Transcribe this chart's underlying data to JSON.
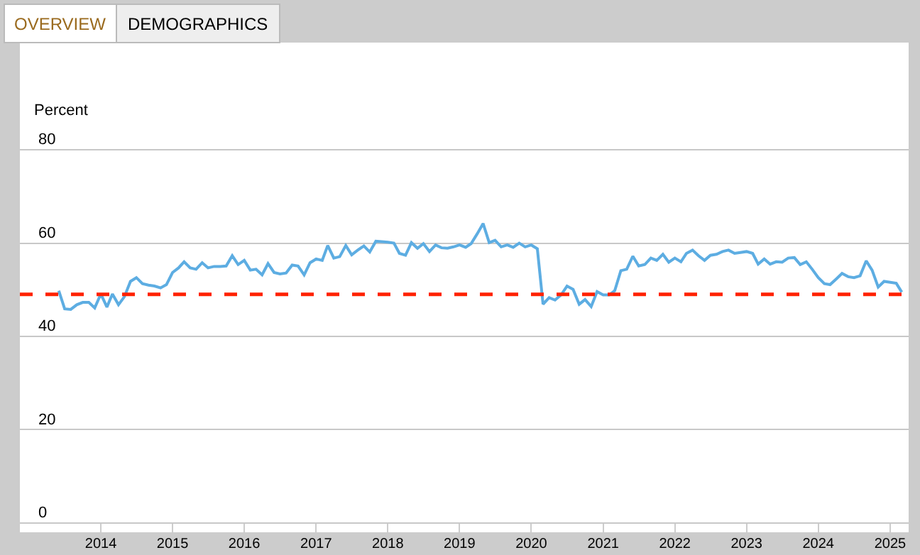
{
  "chart_data": {
    "type": "line",
    "ylabel": "Percent",
    "annotations": [
      "OVERVIEW",
      "DEMOGRAPHICS"
    ],
    "x": [
      "2013-06",
      "2013-07",
      "2013-08",
      "2013-09",
      "2013-10",
      "2013-11",
      "2013-12",
      "2014-01",
      "2014-02",
      "2014-03",
      "2014-04",
      "2014-05",
      "2014-06",
      "2014-07",
      "2014-08",
      "2014-09",
      "2014-10",
      "2014-11",
      "2014-12",
      "2015-01",
      "2015-02",
      "2015-03",
      "2015-04",
      "2015-05",
      "2015-06",
      "2015-07",
      "2015-08",
      "2015-09",
      "2015-10",
      "2015-11",
      "2015-12",
      "2016-01",
      "2016-02",
      "2016-03",
      "2016-04",
      "2016-05",
      "2016-06",
      "2016-07",
      "2016-08",
      "2016-09",
      "2016-10",
      "2016-11",
      "2016-12",
      "2017-01",
      "2017-02",
      "2017-03",
      "2017-04",
      "2017-05",
      "2017-06",
      "2017-07",
      "2017-08",
      "2017-09",
      "2017-10",
      "2017-11",
      "2017-12",
      "2018-01",
      "2018-02",
      "2018-03",
      "2018-04",
      "2018-05",
      "2018-06",
      "2018-07",
      "2018-08",
      "2018-09",
      "2018-10",
      "2018-11",
      "2018-12",
      "2019-01",
      "2019-02",
      "2019-03",
      "2019-04",
      "2019-05",
      "2019-06",
      "2019-07",
      "2019-08",
      "2019-09",
      "2019-10",
      "2019-11",
      "2019-12",
      "2020-01",
      "2020-02",
      "2020-03",
      "2020-04",
      "2020-05",
      "2020-06",
      "2020-07",
      "2020-08",
      "2020-09",
      "2020-10",
      "2020-11",
      "2020-12",
      "2021-01",
      "2021-02",
      "2021-03",
      "2021-04",
      "2021-05",
      "2021-06",
      "2021-07",
      "2021-08",
      "2021-09",
      "2021-10",
      "2021-11",
      "2021-12",
      "2022-01",
      "2022-02",
      "2022-03",
      "2022-04",
      "2022-05",
      "2022-06",
      "2022-07",
      "2022-08",
      "2022-09",
      "2022-10",
      "2022-11",
      "2022-12",
      "2023-01",
      "2023-02",
      "2023-03",
      "2023-04",
      "2023-05",
      "2023-06",
      "2023-07",
      "2023-08",
      "2023-09",
      "2023-10",
      "2023-11",
      "2023-12",
      "2024-01",
      "2024-02",
      "2024-03",
      "2024-04",
      "2024-05",
      "2024-06",
      "2024-07",
      "2024-08",
      "2024-09",
      "2024-10",
      "2024-11",
      "2024-12",
      "2025-01",
      "2025-02",
      "2025-03"
    ],
    "series": [
      {
        "color": "#5dade2",
        "values": [
          49.8,
          45.9,
          45.8,
          46.8,
          47.3,
          47.3,
          46.1,
          49.1,
          46.3,
          49.1,
          46.8,
          48.5,
          51.8,
          52.6,
          51.3,
          51.0,
          50.8,
          50.4,
          51.1,
          53.7,
          54.7,
          56.0,
          54.7,
          54.4,
          55.8,
          54.7,
          55.0,
          55.0,
          55.1,
          57.3,
          55.4,
          56.3,
          54.2,
          54.4,
          53.2,
          55.6,
          53.7,
          53.4,
          53.6,
          55.3,
          55.1,
          53.2,
          55.8,
          56.6,
          56.3,
          59.5,
          56.8,
          57.1,
          59.5,
          57.5,
          58.5,
          59.4,
          58.1,
          60.4,
          60.3,
          60.2,
          60.0,
          57.8,
          57.4,
          60.1,
          58.9,
          59.9,
          58.2,
          59.6,
          59.0,
          58.9,
          59.2,
          59.6,
          59.1,
          59.9,
          62.0,
          64.2,
          60.1,
          60.6,
          59.2,
          59.6,
          59.1,
          60.0,
          59.2,
          59.6,
          58.8,
          46.9,
          48.3,
          47.8,
          48.9,
          50.8,
          50.1,
          46.9,
          47.9,
          46.4,
          49.6,
          48.9,
          48.9,
          49.8,
          54.1,
          54.4,
          57.2,
          55.1,
          55.4,
          56.8,
          56.3,
          57.6,
          55.9,
          56.8,
          56.0,
          57.8,
          58.5,
          57.3,
          56.3,
          57.4,
          57.6,
          58.2,
          58.5,
          57.8,
          58.0,
          58.2,
          57.8,
          55.5,
          56.6,
          55.5,
          56.0,
          55.9,
          56.8,
          56.9,
          55.4,
          56.0,
          54.4,
          52.6,
          51.3,
          51.1,
          52.3,
          53.5,
          52.8,
          52.6,
          53.0,
          56.2,
          54.2,
          50.6,
          51.8,
          51.6,
          51.4,
          49.5
        ]
      }
    ],
    "xlim": [
      "2012-11-15",
      "2025-04-05"
    ],
    "xticks": [
      {
        "value": "2014",
        "label": "2014"
      },
      {
        "value": "2015",
        "label": "2015"
      },
      {
        "value": "2016",
        "label": "2016"
      },
      {
        "value": "2017",
        "label": "2017"
      },
      {
        "value": "2018",
        "label": "2018"
      },
      {
        "value": "2019",
        "label": "2019"
      },
      {
        "value": "2020",
        "label": "2020"
      },
      {
        "value": "2021",
        "label": "2021"
      },
      {
        "value": "2022",
        "label": "2022"
      },
      {
        "value": "2023",
        "label": "2023"
      },
      {
        "value": "2024",
        "label": "2024"
      },
      {
        "value": "2025",
        "label": "2025"
      }
    ],
    "ylim": [
      -2,
      103
    ],
    "yticks": [
      0,
      20,
      40,
      60,
      80
    ],
    "ref_lines": [
      {
        "axis": "y",
        "value": 49,
        "color": "#ff2200",
        "line_style": "dashed"
      }
    ],
    "grid": "y",
    "marker": "none",
    "line_style": "solid"
  }
}
